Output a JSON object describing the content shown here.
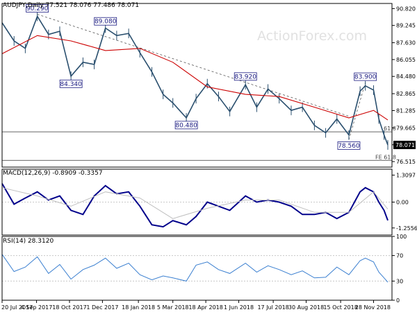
{
  "watermark": "ActionForex.com",
  "colors": {
    "price": "#2a4f6e",
    "ma": "#cc0000",
    "macd": "#00008b",
    "signal": "#bfbfbf",
    "rsi": "#3a7fd0",
    "annotation_border": "#1a1a80",
    "grid": "#c8c8c8"
  },
  "chart_data": [
    {
      "type": "candlestick",
      "title": "AUDJPY,Daily  77.521 78.076 77.486 78.071",
      "last_price": "78.071",
      "y_ticks": [
        "90.820",
        "89.245",
        "87.630",
        "86.055",
        "84.480",
        "82.865",
        "81.285",
        "79.665",
        "78.090",
        "76.515"
      ],
      "ylim": [
        76.0,
        91.3
      ],
      "annotations": [
        {
          "label": "90.290",
          "value": 90.29,
          "date": "2017-09-05"
        },
        {
          "label": "89.080",
          "value": 89.08,
          "date": "2017-12-05"
        },
        {
          "label": "84.340",
          "value": 84.34,
          "date": "2017-10-20"
        },
        {
          "label": "80.480",
          "value": 80.48,
          "date": "2018-03-23"
        },
        {
          "label": "83.920",
          "value": 83.92,
          "date": "2018-06-10"
        },
        {
          "label": "78.560",
          "value": 78.56,
          "date": "2018-10-26"
        },
        {
          "label": "83.900",
          "value": 83.9,
          "date": "2018-11-17"
        }
      ],
      "levels": [
        {
          "label": "61.8",
          "value": 79.3
        },
        {
          "label": "FE 61.8",
          "value": 76.63
        }
      ],
      "series": [
        {
          "name": "",
          "kind": "price",
          "x": [
            "2017-07-20",
            "2017-08-05",
            "2017-08-20",
            "2017-09-05",
            "2017-09-20",
            "2017-10-05",
            "2017-10-20",
            "2017-11-05",
            "2017-11-20",
            "2017-12-05",
            "2017-12-20",
            "2018-01-05",
            "2018-01-20",
            "2018-02-05",
            "2018-02-20",
            "2018-03-05",
            "2018-03-23",
            "2018-04-05",
            "2018-04-20",
            "2018-05-05",
            "2018-05-20",
            "2018-06-10",
            "2018-06-25",
            "2018-07-10",
            "2018-07-25",
            "2018-08-10",
            "2018-08-25",
            "2018-09-10",
            "2018-09-25",
            "2018-10-10",
            "2018-10-26",
            "2018-11-10",
            "2018-11-17",
            "2018-11-28",
            "2018-12-05",
            "2018-12-12",
            "2018-12-17"
          ],
          "values": [
            89.5,
            87.8,
            87.1,
            90.1,
            88.4,
            88.7,
            84.5,
            85.8,
            85.6,
            89.0,
            88.3,
            88.5,
            86.7,
            84.9,
            82.8,
            82.0,
            80.6,
            82.4,
            83.8,
            82.6,
            81.2,
            83.7,
            81.6,
            83.3,
            82.4,
            81.3,
            81.6,
            79.9,
            79.2,
            80.5,
            79.0,
            83.1,
            83.6,
            83.2,
            80.5,
            79.0,
            78.07
          ]
        },
        {
          "name": "",
          "kind": "ma",
          "x": [
            "2017-07-20",
            "2017-09-05",
            "2017-10-20",
            "2017-12-05",
            "2018-01-20",
            "2018-03-05",
            "2018-04-20",
            "2018-06-10",
            "2018-07-25",
            "2018-09-10",
            "2018-10-26",
            "2018-11-28",
            "2018-12-17"
          ],
          "values": [
            86.6,
            88.3,
            87.8,
            86.9,
            87.1,
            85.8,
            83.5,
            82.8,
            82.6,
            81.6,
            80.6,
            81.3,
            80.4
          ]
        }
      ]
    },
    {
      "type": "line",
      "title": "MACD(12,26,9) -0.8909 -0.3357",
      "y_ticks": [
        "1.3097",
        "0.00",
        "-1.2556"
      ],
      "ylim": [
        -1.6,
        1.6
      ],
      "series": [
        {
          "name": "",
          "kind": "macd",
          "x": [
            "2017-07-20",
            "2017-08-05",
            "2017-08-20",
            "2017-09-05",
            "2017-09-20",
            "2017-10-05",
            "2017-10-20",
            "2017-11-05",
            "2017-11-20",
            "2017-12-05",
            "2017-12-20",
            "2018-01-05",
            "2018-01-20",
            "2018-02-05",
            "2018-02-20",
            "2018-03-05",
            "2018-03-23",
            "2018-04-05",
            "2018-04-20",
            "2018-05-05",
            "2018-05-20",
            "2018-06-10",
            "2018-06-25",
            "2018-07-10",
            "2018-07-25",
            "2018-08-10",
            "2018-08-25",
            "2018-09-10",
            "2018-09-25",
            "2018-10-10",
            "2018-10-26",
            "2018-11-10",
            "2018-11-17",
            "2018-11-28",
            "2018-12-05",
            "2018-12-12",
            "2018-12-17"
          ],
          "values": [
            0.9,
            -0.1,
            0.2,
            0.5,
            0.1,
            0.3,
            -0.4,
            -0.6,
            0.3,
            0.8,
            0.4,
            0.5,
            -0.2,
            -1.1,
            -1.2,
            -0.9,
            -1.1,
            -0.7,
            0.0,
            -0.2,
            -0.4,
            0.3,
            0.0,
            0.1,
            0.0,
            -0.2,
            -0.6,
            -0.6,
            -0.5,
            -0.8,
            -0.5,
            0.5,
            0.7,
            0.5,
            0.0,
            -0.4,
            -0.89
          ]
        },
        {
          "name": "",
          "kind": "signal",
          "x": [
            "2017-07-20",
            "2017-09-05",
            "2017-10-20",
            "2017-12-05",
            "2018-01-20",
            "2018-03-05",
            "2018-04-20",
            "2018-06-10",
            "2018-07-25",
            "2018-09-10",
            "2018-10-26",
            "2018-11-28",
            "2018-12-17"
          ],
          "values": [
            0.7,
            0.3,
            -0.2,
            0.5,
            0.2,
            -0.8,
            -0.3,
            0.1,
            0.1,
            -0.5,
            -0.5,
            0.5,
            -0.34
          ]
        }
      ]
    },
    {
      "type": "line",
      "title": "RSI(14) 28.3120",
      "y_ticks": [
        "100",
        "70",
        "30",
        "0"
      ],
      "ylim": [
        0,
        100
      ],
      "series": [
        {
          "name": "",
          "kind": "rsi",
          "x": [
            "2017-07-20",
            "2017-08-05",
            "2017-08-20",
            "2017-09-05",
            "2017-09-20",
            "2017-10-05",
            "2017-10-20",
            "2017-11-05",
            "2017-11-20",
            "2017-12-05",
            "2017-12-20",
            "2018-01-05",
            "2018-01-20",
            "2018-02-05",
            "2018-02-20",
            "2018-03-05",
            "2018-03-23",
            "2018-04-05",
            "2018-04-20",
            "2018-05-05",
            "2018-05-20",
            "2018-06-10",
            "2018-06-25",
            "2018-07-10",
            "2018-07-25",
            "2018-08-10",
            "2018-08-25",
            "2018-09-10",
            "2018-09-25",
            "2018-10-10",
            "2018-10-26",
            "2018-11-10",
            "2018-11-17",
            "2018-11-28",
            "2018-12-05",
            "2018-12-12",
            "2018-12-17"
          ],
          "values": [
            72,
            45,
            52,
            68,
            42,
            56,
            33,
            48,
            55,
            66,
            50,
            58,
            40,
            32,
            38,
            35,
            30,
            55,
            60,
            48,
            42,
            58,
            44,
            54,
            48,
            40,
            46,
            35,
            36,
            52,
            40,
            62,
            66,
            60,
            44,
            35,
            28.3
          ]
        }
      ]
    }
  ],
  "x_axis": {
    "ticks": [
      {
        "label": "20 Jul 2017",
        "date": "2017-07-20"
      },
      {
        "label": "4 Sep 2017",
        "date": "2017-09-04"
      },
      {
        "label": "18 Oct 2017",
        "date": "2017-10-18"
      },
      {
        "label": "1 Dec 2017",
        "date": "2017-12-01"
      },
      {
        "label": "18 Jan 2018",
        "date": "2018-01-18"
      },
      {
        "label": "5 Mar 2018",
        "date": "2018-03-05"
      },
      {
        "label": "18 Apr 2018",
        "date": "2018-04-18"
      },
      {
        "label": "1 Jun 2018",
        "date": "2018-06-01"
      },
      {
        "label": "17 Jul 2018",
        "date": "2018-07-17"
      },
      {
        "label": "30 Aug 2018",
        "date": "2018-08-30"
      },
      {
        "label": "15 Oct 2018",
        "date": "2018-10-15"
      },
      {
        "label": "28 Nov 2018",
        "date": "2018-11-28"
      }
    ]
  }
}
